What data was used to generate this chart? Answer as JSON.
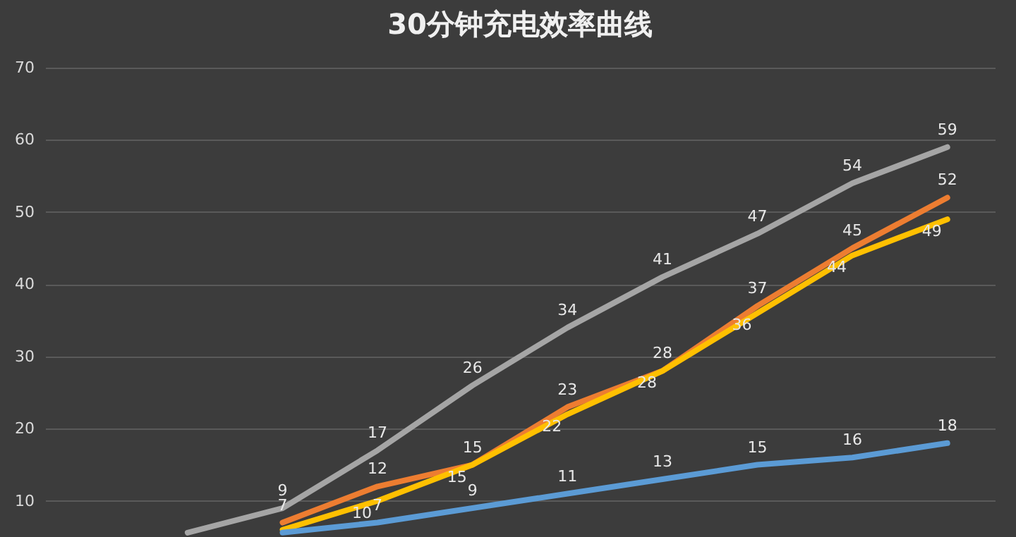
{
  "chart_data": {
    "type": "line",
    "title": "30分钟充电效率曲线",
    "categories": [
      null,
      null,
      null,
      null,
      null,
      null,
      null,
      null,
      null,
      null
    ],
    "series": [
      {
        "color": "#a5a5a5",
        "values": [
          null,
          5.6,
          9,
          17,
          26,
          34,
          41,
          47,
          54,
          59
        ],
        "value_labels": [
          null,
          null,
          "9",
          "17",
          "26",
          "34",
          "41",
          "47",
          "54",
          "59"
        ]
      },
      {
        "color": "#ed7d31",
        "values": [
          null,
          null,
          7,
          12,
          15,
          23,
          28,
          37,
          45,
          52
        ],
        "value_labels": [
          null,
          null,
          "7",
          "12",
          "15",
          "23",
          "28",
          "37",
          "45",
          "52"
        ]
      },
      {
        "color": "#ffc000",
        "values": [
          null,
          null,
          6,
          10,
          15,
          22,
          28,
          36,
          44,
          49
        ],
        "value_labels": [
          null,
          null,
          null,
          "10",
          "15",
          "22",
          "28",
          "36",
          "44",
          "49"
        ]
      },
      {
        "color": "#5b9bd5",
        "values": [
          null,
          null,
          5.6,
          7,
          9,
          11,
          13,
          15,
          16,
          18
        ],
        "value_labels": [
          null,
          null,
          null,
          "7",
          "9",
          "11",
          "13",
          "15",
          "16",
          "18"
        ]
      }
    ],
    "ylim": [
      5,
      70
    ],
    "yticks": [
      10,
      20,
      30,
      40,
      50,
      60,
      70
    ],
    "grid": "y",
    "tick_labels": "y"
  }
}
